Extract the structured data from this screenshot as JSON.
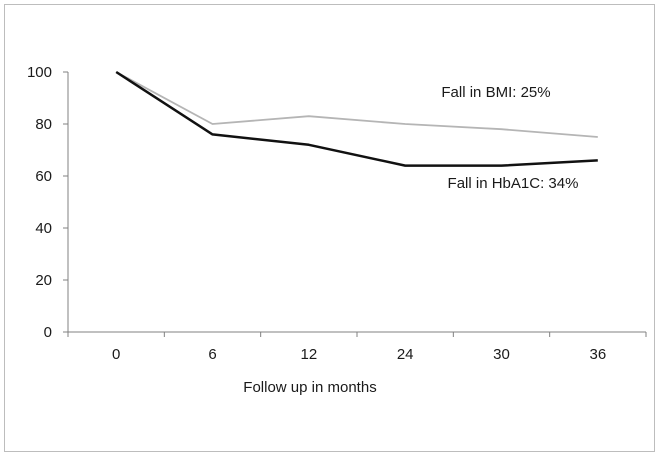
{
  "chart_data": {
    "type": "line",
    "categories": [
      "0",
      "6",
      "12",
      "24",
      "30",
      "36"
    ],
    "series": [
      {
        "values": [
          100,
          80,
          83,
          80,
          78,
          75
        ],
        "color": "#b5b5b5"
      },
      {
        "values": [
          100,
          76,
          72,
          64,
          64,
          66
        ],
        "color": "#111111"
      }
    ],
    "ylim": [
      0,
      100
    ],
    "yticks": [
      0,
      20,
      40,
      60,
      80,
      100
    ],
    "xlabel": "Follow  up in months",
    "ylabel": "",
    "title": "",
    "grid": false,
    "annotations": [
      {
        "text": "Fall in BMI: 25%"
      },
      {
        "text": "Fall in HbA1C: 34%"
      }
    ]
  }
}
